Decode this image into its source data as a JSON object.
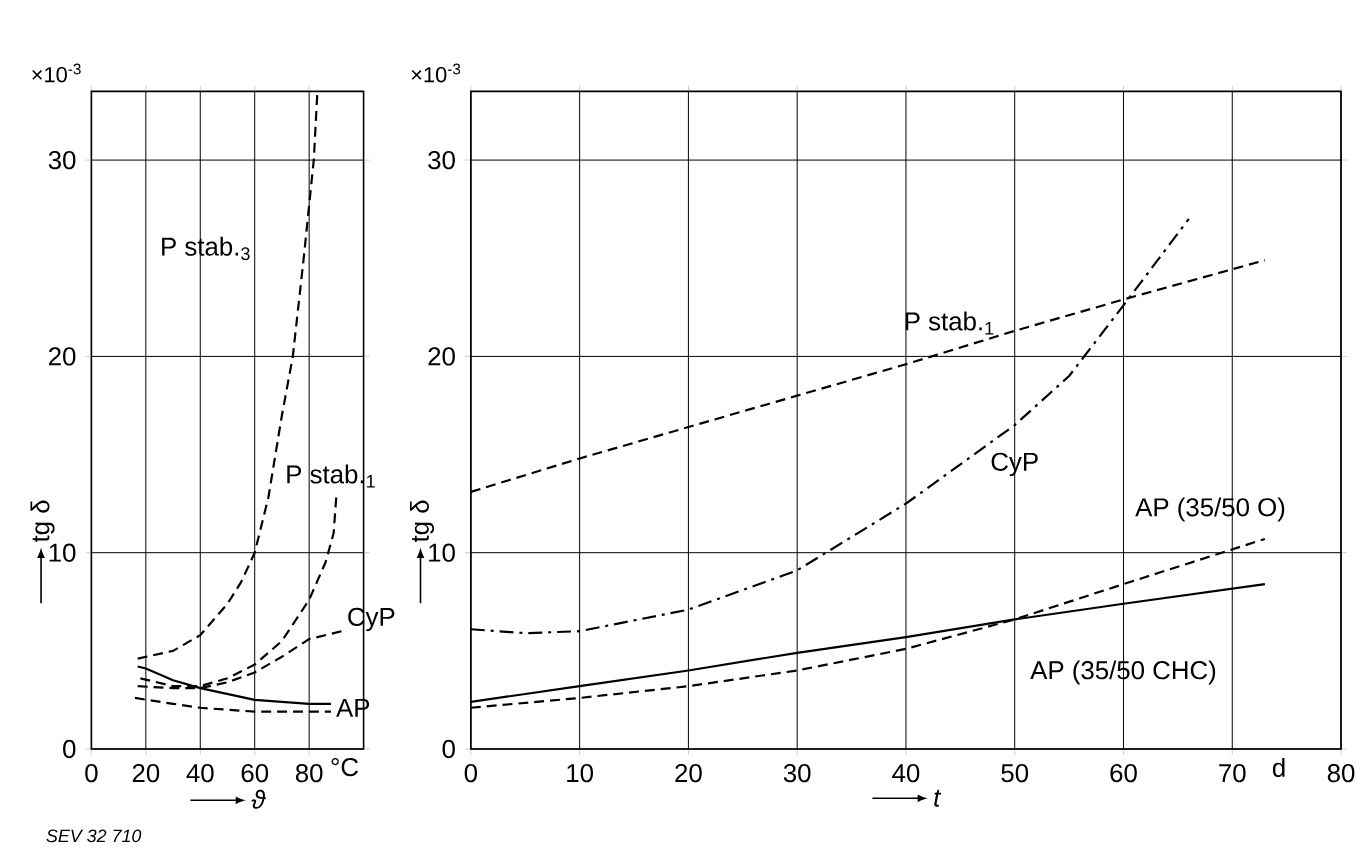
{
  "chart_data": [
    {
      "type": "line",
      "xlabel": "ϑ",
      "ylabel": "tg δ",
      "xlim": [
        0,
        100
      ],
      "ylim": [
        0,
        33.5
      ],
      "xticks": [
        0,
        20,
        40,
        60,
        80,
        {
          "value": 93,
          "label": "°C"
        }
      ],
      "yticks": [
        0,
        10,
        20,
        30
      ],
      "grid": true,
      "marker": "none",
      "series": [
        {
          "name": "P stab.$_{3}$",
          "color": "#000000",
          "line_style": "dashed",
          "x": [
            17,
            30,
            40,
            50,
            55,
            60,
            65,
            70,
            74,
            78,
            81.7,
            83
          ],
          "values": [
            4.6,
            5.0,
            5.8,
            7.4,
            8.5,
            10.0,
            12.8,
            17,
            20,
            25,
            30,
            33.4
          ]
        },
        {
          "name": "P stab.$_{1}$",
          "color": "#000000",
          "line_style": "dashed",
          "x": [
            18,
            30,
            40,
            50,
            60,
            70,
            80,
            86,
            89,
            90
          ],
          "values": [
            3.6,
            3.2,
            3.2,
            3.6,
            4.3,
            5.5,
            7.6,
            9.5,
            11,
            12.9
          ]
        },
        {
          "name": "CyP",
          "color": "#000000",
          "line_style": "dashed",
          "x": [
            17,
            30,
            40,
            50,
            60,
            70,
            80,
            92
          ],
          "values": [
            3.2,
            3.1,
            3.1,
            3.4,
            3.9,
            4.7,
            5.6,
            6.0
          ]
        },
        {
          "name": "AP",
          "color": "#000000",
          "line_style": "solid",
          "x": [
            17,
            20,
            30,
            40,
            50,
            60,
            70,
            80,
            88
          ],
          "values": [
            4.2,
            4.1,
            3.5,
            3.1,
            2.8,
            2.5,
            2.4,
            2.3,
            2.3
          ]
        },
        {
          "color": "#000000",
          "line_style": "dashed",
          "x": [
            16,
            30,
            40,
            50,
            60,
            70,
            88
          ],
          "values": [
            2.6,
            2.3,
            2.1,
            2.0,
            1.9,
            1.9,
            1.9
          ]
        }
      ],
      "annotations": [
        "×10$^{-3}$",
        "SEV 32 710"
      ]
    },
    {
      "type": "line",
      "xlabel": "t",
      "ylabel": "tg δ",
      "xlim": [
        0,
        80
      ],
      "ylim": [
        0,
        33.5
      ],
      "xticks": [
        0,
        10,
        20,
        30,
        40,
        50,
        60,
        70,
        {
          "value": 74.3,
          "label": "d"
        },
        80
      ],
      "yticks": [
        0,
        10,
        20,
        30
      ],
      "grid": true,
      "marker": "none",
      "series": [
        {
          "name": "P stab.$_{1}$",
          "color": "#000000",
          "line_style": "dashed",
          "x": [
            0,
            10,
            20,
            30,
            40,
            50,
            60,
            73
          ],
          "values": [
            13.1,
            14.8,
            16.4,
            18,
            19.6,
            21.3,
            22.9,
            24.9
          ]
        },
        {
          "name": "CyP",
          "color": "#000000",
          "line_style": "dashdot",
          "x": [
            0,
            5,
            10,
            20,
            30,
            40,
            50,
            55,
            60,
            66
          ],
          "values": [
            6.1,
            5.9,
            6.0,
            7.1,
            9.1,
            12.5,
            16.5,
            19,
            22.6,
            27
          ]
        },
        {
          "name": "AP (35/50 O)",
          "color": "#000000",
          "line_style": "dashed",
          "x": [
            0,
            10,
            20,
            30,
            40,
            50,
            60,
            73
          ],
          "values": [
            2.1,
            2.6,
            3.2,
            4.0,
            5.1,
            6.6,
            8.4,
            10.7
          ]
        },
        {
          "name": "AP (35/50 CHC)",
          "color": "#000000",
          "line_style": "solid",
          "x": [
            0,
            10,
            20,
            30,
            40,
            50,
            60,
            73
          ],
          "values": [
            2.4,
            3.2,
            4.0,
            4.9,
            5.7,
            6.6,
            7.4,
            8.4
          ]
        }
      ],
      "annotations": [
        "×10$^{-3}$"
      ]
    }
  ]
}
